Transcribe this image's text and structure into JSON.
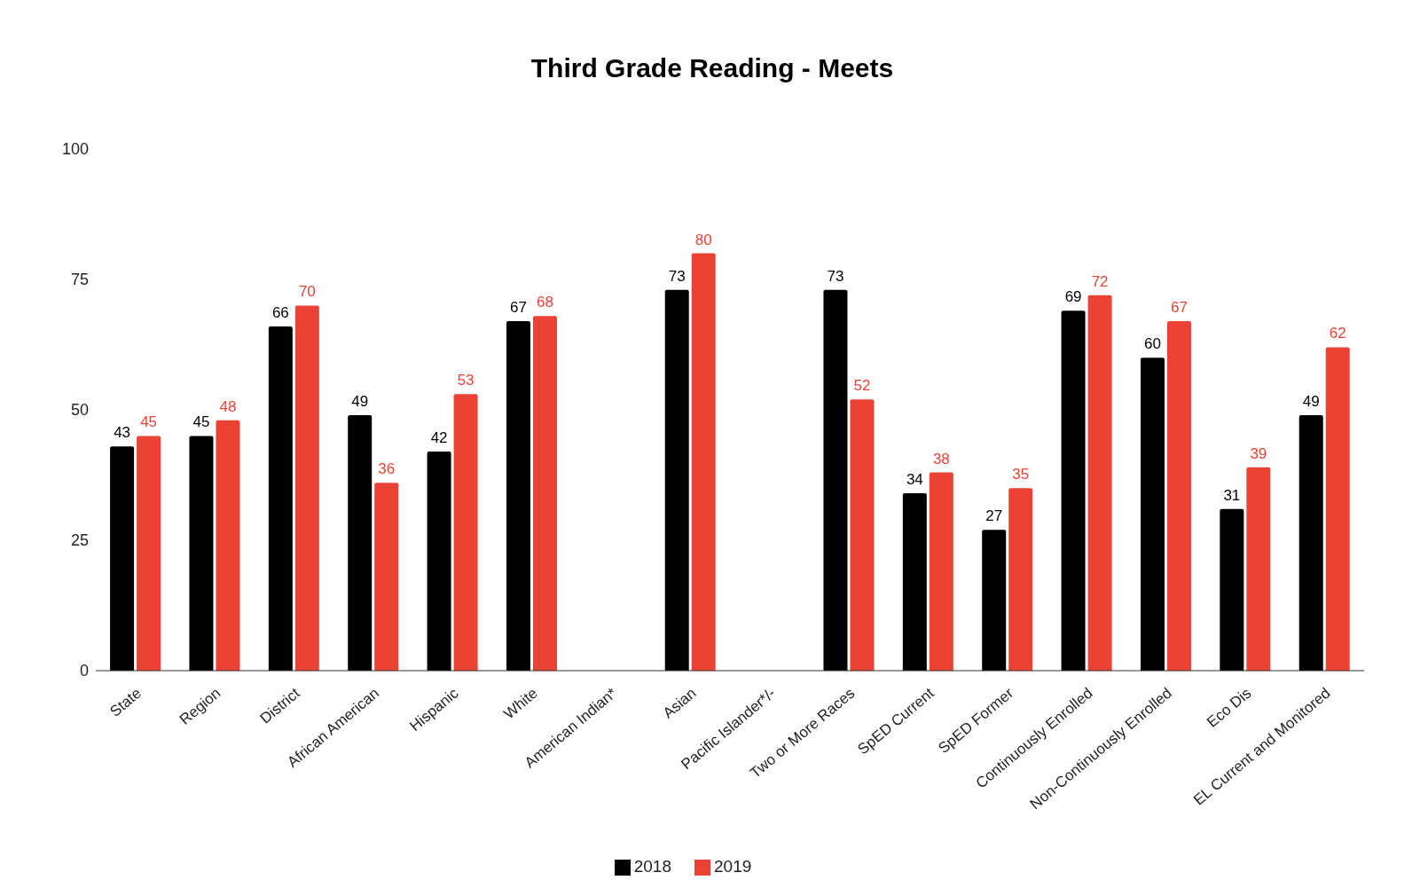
{
  "chart_data": {
    "type": "bar",
    "title": "Third Grade Reading - Meets",
    "categories": [
      "State",
      "Region",
      "District",
      "African American",
      "Hispanic",
      "White",
      "American Indian*",
      "Asian",
      "Pacific Islander*/-",
      "Two or More Races",
      "SpED Current",
      "SpED Former",
      "Continuously Enrolled",
      "Non-Continuously Enrolled",
      "Eco Dis",
      "EL Current and Monitored"
    ],
    "series": [
      {
        "name": "2018",
        "color": "#000000",
        "values": [
          43,
          45,
          66,
          49,
          42,
          67,
          null,
          73,
          null,
          73,
          34,
          27,
          69,
          60,
          31,
          49
        ]
      },
      {
        "name": "2019",
        "color": "#ea4335",
        "values": [
          45,
          48,
          70,
          36,
          53,
          68,
          null,
          80,
          null,
          52,
          38,
          35,
          72,
          67,
          39,
          62
        ]
      }
    ],
    "ylim": [
      0,
      100
    ],
    "yticks": [
      0,
      25,
      50,
      75,
      100
    ],
    "grid": false,
    "legend": "bottom",
    "data_labels": true
  }
}
